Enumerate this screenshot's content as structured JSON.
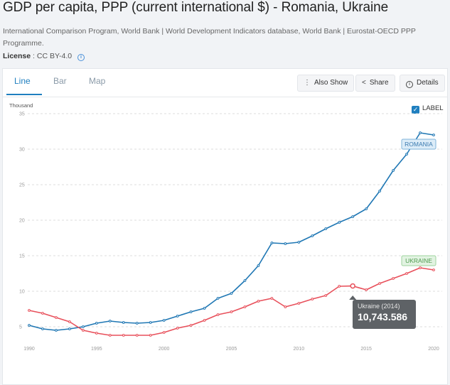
{
  "header": {
    "title": "GDP per capita, PPP (current international $) - Romania, Ukraine",
    "source": "International Comparison Program, World Bank | World Development Indicators database, World Bank | Eurostat-OECD PPP Programme.",
    "license_label": "License",
    "license_value": ": CC BY-4.0",
    "info_icon": "info-icon"
  },
  "tabs": [
    {
      "label": "Line",
      "active": true
    },
    {
      "label": "Bar",
      "active": false
    },
    {
      "label": "Map",
      "active": false
    }
  ],
  "toolbar": {
    "also_show": "Also Show",
    "share": "Share",
    "details": "Details",
    "also_show_icon": "more-vertical-icon",
    "share_icon": "share-icon",
    "details_icon": "info-icon"
  },
  "label_toggle": {
    "label": "LABEL",
    "checked": true
  },
  "tooltip": {
    "title": "Ukraine (2014)",
    "value": "10,743.586"
  },
  "colors": {
    "romania": "#1f77b4",
    "ukraine": "#e8505b",
    "accent": "#1f7fbf"
  },
  "chart_data": {
    "type": "line",
    "unit_label": "Thousand",
    "x": [
      1990,
      1991,
      1992,
      1993,
      1994,
      1995,
      1996,
      1997,
      1998,
      1999,
      2000,
      2001,
      2002,
      2003,
      2004,
      2005,
      2006,
      2007,
      2008,
      2009,
      2010,
      2011,
      2012,
      2013,
      2014,
      2015,
      2016,
      2017,
      2018,
      2019,
      2020
    ],
    "xticks": [
      1990,
      1995,
      2000,
      2005,
      2010,
      2015,
      2020
    ],
    "yticks": [
      5,
      10,
      15,
      20,
      25,
      30,
      35
    ],
    "ylim": [
      2.5,
      35
    ],
    "series": [
      {
        "name": "ROMANIA",
        "values": [
          5.2,
          4.7,
          4.5,
          4.7,
          5.0,
          5.5,
          5.8,
          5.6,
          5.5,
          5.6,
          5.9,
          6.5,
          7.1,
          7.6,
          9.0,
          9.7,
          11.5,
          13.6,
          16.8,
          16.7,
          16.9,
          17.8,
          18.8,
          19.7,
          20.5,
          21.6,
          24.1,
          27.0,
          29.3,
          32.3,
          32.0
        ]
      },
      {
        "name": "UKRAINE",
        "values": [
          7.3,
          6.9,
          6.3,
          5.7,
          4.5,
          4.1,
          3.8,
          3.8,
          3.8,
          3.8,
          4.2,
          4.8,
          5.2,
          5.9,
          6.7,
          7.1,
          7.8,
          8.6,
          9.0,
          7.8,
          8.3,
          8.9,
          9.4,
          10.7,
          10.743586,
          10.2,
          11.1,
          11.8,
          12.5,
          13.3,
          13.0
        ]
      }
    ],
    "highlight": {
      "series": "UKRAINE",
      "x": 2014,
      "y": 10.743586
    }
  }
}
